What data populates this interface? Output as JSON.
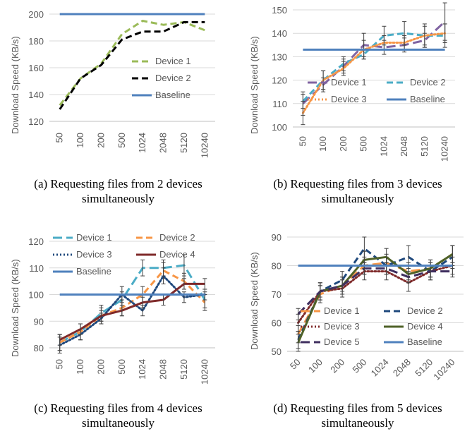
{
  "chart_data": [
    {
      "type": "line",
      "caption": "(a) Requesting files from 2 devices simultaneously",
      "ylabel": "Download Speed (KB/s)",
      "categories": [
        "50",
        "100",
        "200",
        "500",
        "1024",
        "2048",
        "5120",
        "10240"
      ],
      "ylim": [
        120,
        200
      ],
      "yticks": [
        120,
        140,
        160,
        180,
        200
      ],
      "grid": true,
      "series": [
        {
          "name": "Device 1",
          "values": [
            132,
            152,
            163,
            185,
            195,
            192,
            194,
            188
          ],
          "color": "#9BBB59",
          "dash": "dash"
        },
        {
          "name": "Device 2",
          "values": [
            129,
            152,
            162,
            181,
            187,
            187,
            194,
            194
          ],
          "color": "#000000",
          "dash": "dash"
        },
        {
          "name": "Baseline",
          "values": [
            200,
            200,
            200,
            200,
            200,
            200,
            200,
            200
          ],
          "color": "#4F81BD",
          "dash": "solid"
        }
      ]
    },
    {
      "type": "line",
      "caption": "(b) Requesting files from 3 devices simultaneously",
      "ylabel": "Download Speed (KB/s)",
      "categories": [
        "50",
        "100",
        "200",
        "500",
        "1024",
        "2048",
        "5120",
        "10240"
      ],
      "ylim": [
        100,
        150
      ],
      "yticks": [
        100,
        110,
        120,
        130,
        140,
        150
      ],
      "grid": true,
      "series": [
        {
          "name": "Device 1",
          "values": [
            110,
            118,
            126,
            135,
            134,
            135,
            137,
            145
          ],
          "color": "#8064A2",
          "dash": "longdash",
          "errors": [
            5,
            3,
            3,
            5,
            3,
            3,
            3,
            8
          ]
        },
        {
          "name": "Device 2",
          "values": [
            111,
            120,
            127,
            131,
            139,
            140,
            139,
            139
          ],
          "color": "#4BACC6",
          "dash": "dash",
          "errors": [
            3,
            4,
            3,
            2,
            4,
            5,
            5,
            5
          ]
        },
        {
          "name": "Device 3",
          "values": [
            106,
            120,
            125,
            133,
            136,
            136,
            139,
            140
          ],
          "color": "#F79646",
          "dash": "dot",
          "errors": [
            5,
            4,
            3,
            4,
            3,
            3,
            4,
            4
          ]
        },
        {
          "name": "Baseline",
          "values": [
            133,
            133,
            133,
            133,
            133,
            133,
            133,
            133
          ],
          "color": "#4F81BD",
          "dash": "solid"
        }
      ]
    },
    {
      "type": "line",
      "caption": "(c) Requesting files from 4 devices simultaneously",
      "ylabel": "Download Speed (KB/s)",
      "categories": [
        "50",
        "100",
        "200",
        "500",
        "1024",
        "2048",
        "5120",
        "10240"
      ],
      "ylim": [
        80,
        120
      ],
      "yticks": [
        80,
        90,
        100,
        110,
        120
      ],
      "grid": true,
      "series": [
        {
          "name": "Device 1",
          "values": [
            82,
            86,
            93,
            98,
            110,
            110,
            111,
            98
          ],
          "color": "#4BACC6",
          "dash": "longdash",
          "errors": [
            3,
            3,
            3,
            3,
            3,
            3,
            4,
            3
          ]
        },
        {
          "name": "Device 2",
          "values": [
            82,
            86,
            92,
            95,
            100,
            109,
            105,
            97
          ],
          "color": "#F79646",
          "dash": "dash",
          "errors": [
            3,
            3,
            3,
            3,
            3,
            3,
            3,
            3
          ]
        },
        {
          "name": "Device 3",
          "values": [
            81,
            85,
            91,
            100,
            94,
            107,
            99,
            100
          ],
          "color": "#1F497D",
          "dash": "dot",
          "errors": [
            3,
            2,
            2,
            3,
            2,
            3,
            2,
            2
          ]
        },
        {
          "name": "Device 4",
          "values": [
            83,
            87,
            92,
            94,
            97,
            98,
            104,
            104
          ],
          "color": "#7F2A2A",
          "dash": "solid",
          "errors": [
            2,
            2,
            2,
            2,
            2,
            2,
            2,
            2
          ]
        },
        {
          "name": "Baseline",
          "values": [
            100,
            100,
            100,
            100,
            100,
            100,
            100,
            100
          ],
          "color": "#4F81BD",
          "dash": "solid"
        }
      ]
    },
    {
      "type": "line",
      "caption": "(d) Requesting files from 5 devices simultaneously",
      "ylabel": "Download Speed (KB/s)",
      "categories": [
        "50",
        "100",
        "200",
        "500",
        "1024",
        "2048",
        "5120",
        "10240"
      ],
      "ylim": [
        50,
        90
      ],
      "yticks": [
        50,
        60,
        70,
        80,
        90
      ],
      "grid": true,
      "series": [
        {
          "name": "Device 1",
          "values": [
            56,
            70,
            73,
            80,
            81,
            78,
            79,
            84
          ],
          "color": "#F79646",
          "dash": "longdash",
          "errors": [
            3,
            3,
            3,
            3,
            3,
            3,
            3,
            3
          ]
        },
        {
          "name": "Device 2",
          "values": [
            54,
            71,
            75,
            86,
            80,
            83,
            78,
            83
          ],
          "color": "#1F497D",
          "dash": "dash",
          "errors": [
            3,
            3,
            3,
            4,
            3,
            4,
            3,
            4
          ]
        },
        {
          "name": "Device 3",
          "values": [
            60,
            71,
            72,
            78,
            78,
            74,
            78,
            80
          ],
          "color": "#7F2A2A",
          "dash": "dot",
          "errors": [
            3,
            3,
            3,
            3,
            3,
            3,
            3,
            3
          ]
        },
        {
          "name": "Device 4",
          "values": [
            53,
            71,
            73,
            82,
            83,
            77,
            79,
            84
          ],
          "color": "#4F6228",
          "dash": "solid",
          "errors": [
            3,
            3,
            3,
            3,
            3,
            3,
            3,
            3
          ]
        },
        {
          "name": "Device 5",
          "values": [
            63,
            71,
            73,
            79,
            79,
            76,
            78,
            78
          ],
          "color": "#3F2F5F",
          "dash": "longdash",
          "errors": [
            2,
            2,
            2,
            2,
            2,
            2,
            2,
            2
          ]
        },
        {
          "name": "Baseline",
          "values": [
            80,
            80,
            80,
            80,
            80,
            80,
            80,
            80
          ],
          "color": "#4F81BD",
          "dash": "solid"
        }
      ]
    }
  ]
}
